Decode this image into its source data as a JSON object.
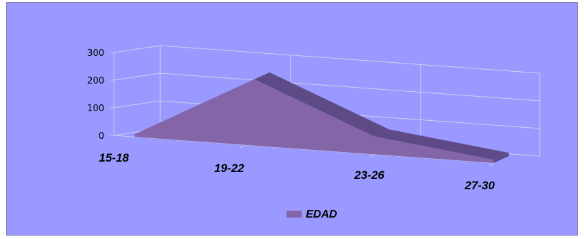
{
  "chart_data": {
    "type": "area",
    "three_d": true,
    "categories": [
      "15-18",
      "19-22",
      "23-26",
      "27-30"
    ],
    "series": [
      {
        "name": "EDAD",
        "values": [
          10,
          240,
          65,
          12
        ]
      }
    ],
    "yticks": [
      0,
      100,
      200,
      300
    ],
    "ylim": [
      0,
      300
    ],
    "grid": true,
    "legend_position": "bottom",
    "colors": {
      "background": "#9999ff",
      "area_front": "#8466a8",
      "area_top": "#5e4a86",
      "gridline": "#d0d0ec",
      "axis": "#c8c8e8"
    }
  }
}
